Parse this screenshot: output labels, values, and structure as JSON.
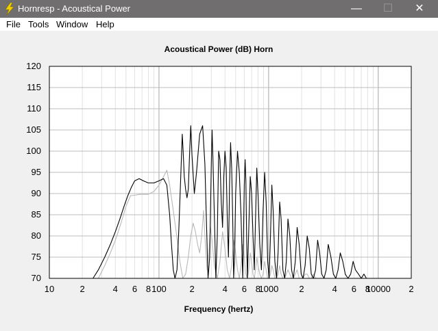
{
  "window": {
    "title": "Hornresp - Acoustical Power",
    "minimize_glyph": "—",
    "maximize_glyph": "☐",
    "close_glyph": "✕",
    "icon": "lightning-icon"
  },
  "menu": {
    "items": [
      {
        "label": "File"
      },
      {
        "label": "Tools"
      },
      {
        "label": "Window"
      },
      {
        "label": "Help"
      }
    ]
  },
  "chart_data": {
    "type": "line",
    "title": "Acoustical Power (dB)    Horn",
    "xlabel": "Frequency (hertz)",
    "ylabel": "",
    "x_scale": "log",
    "xlim": [
      10,
      20000
    ],
    "ylim": [
      70,
      120
    ],
    "grid": true,
    "y_ticks": [
      "120",
      "115",
      "110",
      "105",
      "100",
      "95",
      "90",
      "85",
      "80",
      "75",
      "70"
    ],
    "x_ticks": [
      {
        "value": 10,
        "label": "10"
      },
      {
        "value": 20,
        "label": "2"
      },
      {
        "value": 40,
        "label": "4"
      },
      {
        "value": 60,
        "label": "6"
      },
      {
        "value": 80,
        "label": "8"
      },
      {
        "value": 100,
        "label": "100"
      },
      {
        "value": 200,
        "label": "2"
      },
      {
        "value": 400,
        "label": "4"
      },
      {
        "value": 600,
        "label": "6"
      },
      {
        "value": 800,
        "label": "8"
      },
      {
        "value": 1000,
        "label": "1000"
      },
      {
        "value": 2000,
        "label": "2"
      },
      {
        "value": 4000,
        "label": "4"
      },
      {
        "value": 6000,
        "label": "6"
      },
      {
        "value": 8000,
        "label": "8"
      },
      {
        "value": 10000,
        "label": "10000"
      },
      {
        "value": 20000,
        "label": "2"
      }
    ],
    "series": [
      {
        "color": "#000000",
        "x": [
          25,
          28,
          32,
          36,
          40,
          44,
          48,
          52,
          56,
          60,
          66,
          72,
          80,
          90,
          100,
          110,
          118,
          125,
          130,
          135,
          140,
          146,
          152,
          158,
          163,
          166,
          170,
          175,
          180,
          185,
          190,
          195,
          200,
          210,
          220,
          235,
          250,
          262,
          270,
          280,
          290,
          300,
          305,
          310,
          320,
          330,
          340,
          350,
          360,
          370,
          380,
          390,
          400,
          410,
          420,
          430,
          440,
          450,
          460,
          470,
          480,
          490,
          500,
          520,
          540,
          560,
          580,
          590,
          600,
          610,
          620,
          630,
          640,
          660,
          680,
          700,
          720,
          740,
          760,
          780,
          800,
          830,
          860,
          890,
          920,
          950,
          980,
          1010,
          1040,
          1070,
          1100,
          1140,
          1180,
          1220,
          1260,
          1300,
          1350,
          1400,
          1450,
          1500,
          1560,
          1620,
          1680,
          1750,
          1820,
          1900,
          1980,
          2060,
          2150,
          2250,
          2350,
          2450,
          2560,
          2680,
          2800,
          2920,
          3050,
          3200,
          3350,
          3500,
          3700,
          3900,
          4100,
          4300,
          4500,
          4750,
          5000,
          5300,
          5600,
          5900,
          6200,
          6600,
          7000,
          7400,
          7800
        ],
        "y": [
          70,
          72,
          75,
          78,
          81,
          84,
          87,
          89.5,
          91.5,
          93,
          93.5,
          93,
          92.5,
          92.5,
          93,
          93.5,
          92,
          85,
          78,
          72,
          70,
          72,
          82,
          94,
          104,
          100,
          94,
          91,
          89,
          91,
          99,
          106,
          99,
          90,
          95,
          104,
          106,
          97,
          85,
          70,
          75,
          97,
          105,
          99,
          85,
          70,
          80,
          100,
          98,
          88,
          82,
          94,
          100,
          96,
          84,
          75,
          92,
          102,
          96,
          84,
          70,
          76,
          90,
          100,
          95,
          85,
          70,
          80,
          92,
          98,
          93,
          80,
          70,
          82,
          94,
          90,
          80,
          72,
          84,
          96,
          90,
          78,
          72,
          86,
          95,
          88,
          74,
          70,
          80,
          92,
          86,
          74,
          70,
          76,
          88,
          84,
          72,
          70,
          74,
          84,
          80,
          72,
          70,
          74,
          82,
          78,
          71,
          70,
          73,
          80,
          77,
          71,
          70,
          72,
          79,
          76,
          71,
          70,
          72,
          78,
          75,
          71,
          70,
          72,
          76,
          74,
          71,
          70,
          71,
          74,
          72,
          71,
          70,
          71,
          70
        ]
      },
      {
        "color": "#b8b8b8",
        "x": [
          28,
          32,
          36,
          40,
          45,
          50,
          55,
          60,
          66,
          72,
          80,
          90,
          100,
          110,
          118,
          125,
          135,
          145,
          155,
          165,
          175,
          185,
          195,
          205,
          215,
          225,
          235,
          245,
          255,
          265,
          275,
          285,
          295,
          305,
          320,
          340,
          360,
          380,
          400,
          420,
          440,
          460,
          480,
          500,
          520,
          540,
          560,
          580,
          600,
          620,
          640,
          660,
          680,
          700,
          720,
          740,
          760,
          780,
          800,
          830,
          860,
          890,
          920,
          950,
          980,
          1010,
          1040,
          1070,
          1100,
          1140,
          1180,
          1220,
          1260,
          1300,
          1350,
          1400,
          1450,
          1500,
          1560,
          1620,
          1680,
          1750,
          1820,
          1900,
          1980,
          2060,
          2150,
          2250,
          2350,
          2450,
          2560,
          2680,
          2800,
          2920,
          3050
        ],
        "y": [
          70,
          73,
          76,
          79,
          83,
          87,
          89.5,
          89.6,
          89.8,
          89.8,
          89.8,
          90.5,
          92,
          94,
          95.5,
          92,
          86,
          80,
          74,
          70,
          71,
          75,
          80,
          83,
          81,
          78,
          76,
          80,
          86,
          78,
          72,
          76,
          82,
          79,
          73,
          70,
          74,
          81,
          77,
          72,
          70,
          73,
          79,
          76,
          72,
          70,
          73,
          78,
          75,
          71,
          70,
          72,
          76,
          74,
          71,
          70,
          72,
          75,
          73,
          71,
          70,
          71,
          74,
          72,
          70,
          70,
          71,
          73,
          72,
          70,
          70,
          71,
          73,
          71,
          70,
          70,
          71,
          72,
          71,
          70,
          70,
          71,
          72,
          70,
          70,
          70,
          71,
          71,
          70,
          70,
          71,
          70,
          70,
          70,
          70
        ]
      }
    ]
  }
}
